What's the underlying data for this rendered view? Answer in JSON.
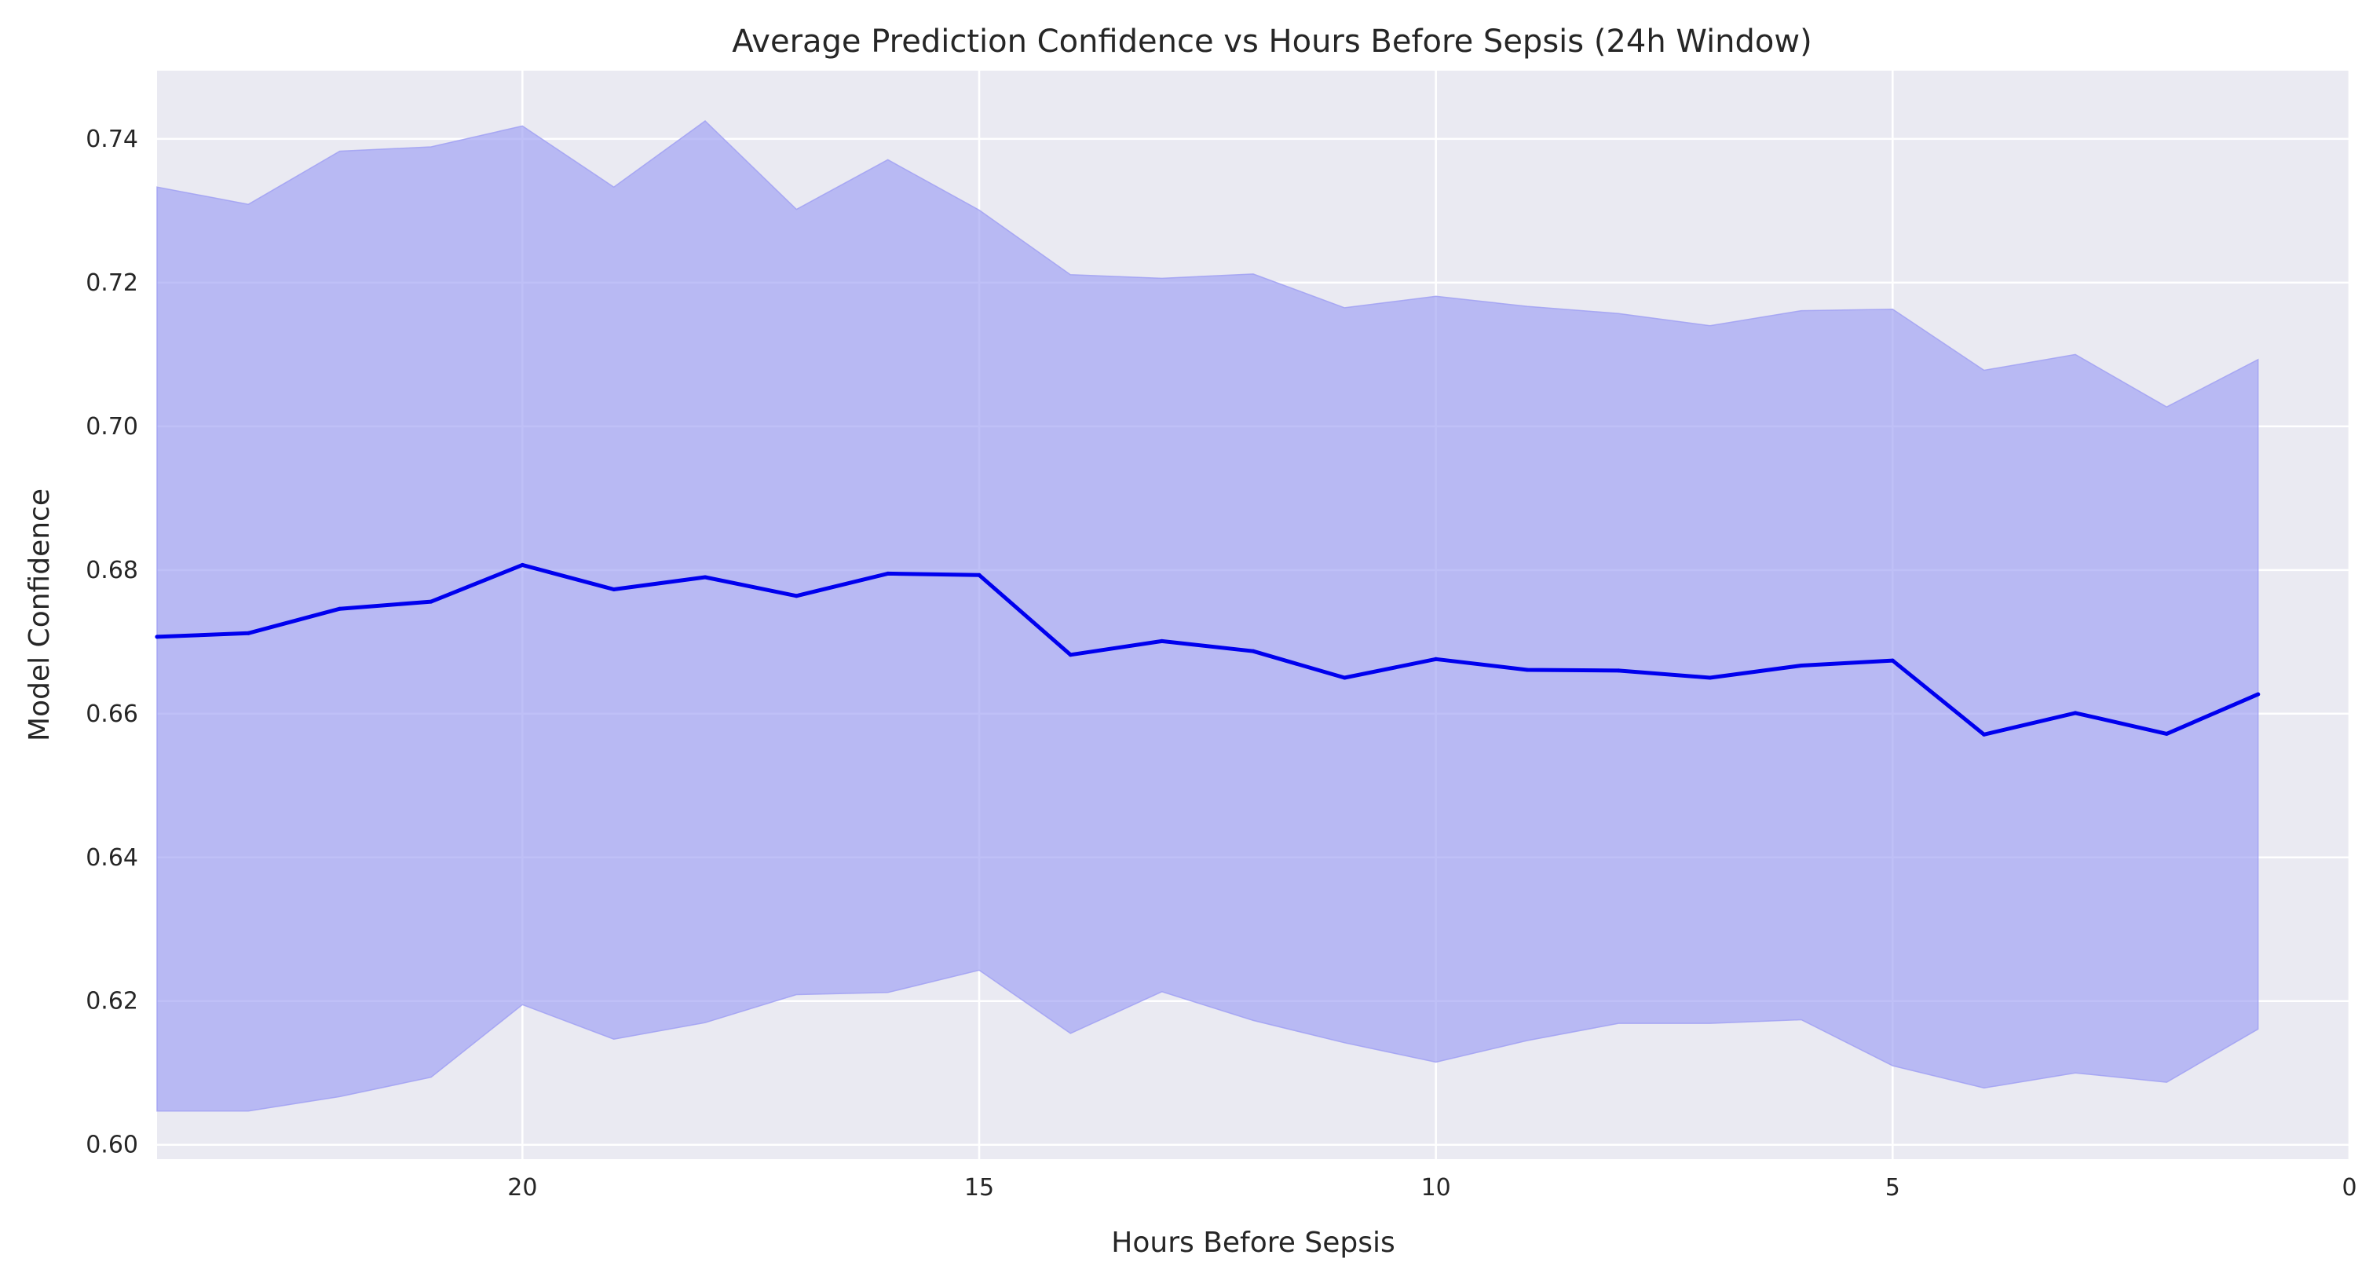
{
  "chart_data": {
    "type": "line",
    "title": "Average Prediction Confidence vs Hours Before Sepsis (24h Window)",
    "xlabel": "Hours Before Sepsis",
    "ylabel": "Model Confidence",
    "x_reversed": true,
    "xlim": [
      24,
      0
    ],
    "ylim": [
      0.598,
      0.7495
    ],
    "xticks": [
      20,
      15,
      10,
      5,
      0
    ],
    "xtick_labels": [
      "20",
      "15",
      "10",
      "5",
      "0"
    ],
    "yticks": [
      0.6,
      0.62,
      0.64,
      0.66,
      0.68,
      0.7,
      0.72,
      0.74
    ],
    "ytick_labels": [
      "0.60",
      "0.62",
      "0.64",
      "0.66",
      "0.68",
      "0.70",
      "0.72",
      "0.74"
    ],
    "grid": true,
    "background_color": "#eaeaf2",
    "grid_color": "#ffffff",
    "line_color": "#0000ee",
    "band_color": "#9d9ef2",
    "x": [
      24,
      23,
      22,
      21,
      20,
      19,
      18,
      17,
      16,
      15,
      14,
      13,
      12,
      11,
      10,
      9,
      8,
      7,
      6,
      5,
      4,
      3,
      2,
      1
    ],
    "series": [
      {
        "values": [
          0.6707,
          0.6712,
          0.6746,
          0.6756,
          0.6807,
          0.6773,
          0.679,
          0.6764,
          0.6795,
          0.6793,
          0.6682,
          0.6701,
          0.6687,
          0.665,
          0.6676,
          0.6661,
          0.666,
          0.665,
          0.6667,
          0.6674,
          0.6571,
          0.6601,
          0.6572,
          0.6627
        ],
        "upper": [
          0.7333,
          0.7309,
          0.7383,
          0.7389,
          0.7418,
          0.7333,
          0.7425,
          0.7302,
          0.7371,
          0.7301,
          0.7211,
          0.7206,
          0.7212,
          0.7165,
          0.7181,
          0.7167,
          0.7157,
          0.714,
          0.7161,
          0.7163,
          0.7078,
          0.71,
          0.7027,
          0.7093
        ],
        "lower": [
          0.6047,
          0.6047,
          0.6067,
          0.6094,
          0.6195,
          0.6147,
          0.617,
          0.6209,
          0.6212,
          0.6243,
          0.6155,
          0.6213,
          0.6173,
          0.6142,
          0.6115,
          0.6145,
          0.6169,
          0.6169,
          0.6174,
          0.611,
          0.6079,
          0.61,
          0.6087,
          0.6161
        ]
      }
    ]
  }
}
